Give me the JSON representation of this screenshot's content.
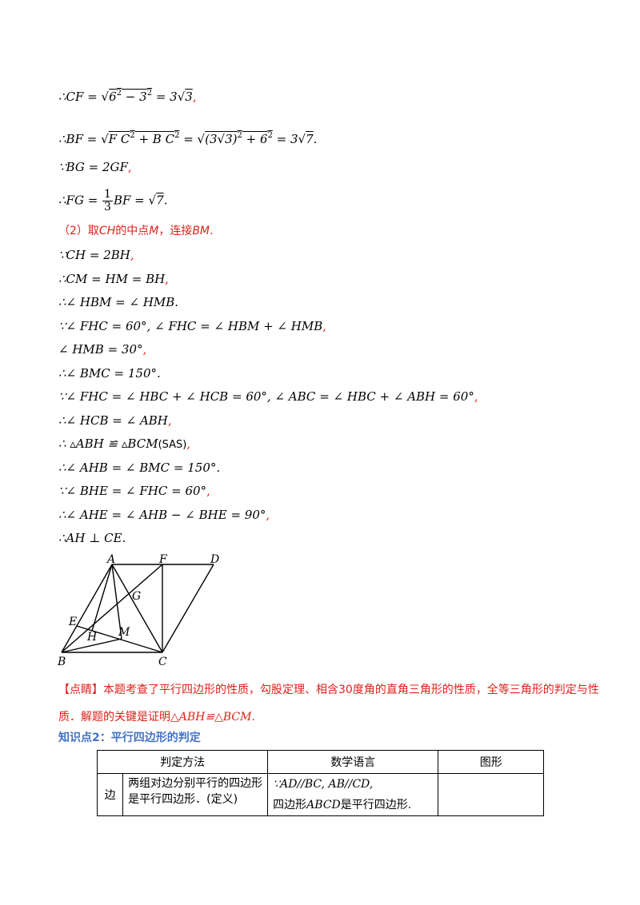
{
  "lines": [
    {
      "id": "l1",
      "text": "∴CF=√(6²−3²)=3√3,"
    },
    {
      "id": "l2",
      "text": "∴BF=√(FC²+BC²)=√((3√3)²+6²)=3√7."
    },
    {
      "id": "l3",
      "text": "∵BG=2GF,"
    },
    {
      "id": "l4",
      "text": "∴FG=1/3 BF=√7."
    },
    {
      "id": "l5",
      "text": "（2）取CH的中点M，连接BM."
    },
    {
      "id": "l6",
      "text": "∵CH=2BH,"
    },
    {
      "id": "l7",
      "text": "∴CM=HM=BH,"
    },
    {
      "id": "l8",
      "text": "∴∠HBM=∠HMB."
    },
    {
      "id": "l9",
      "text": "∵∠FHC=60°,∠FHC=∠HBM+∠HMB,"
    },
    {
      "id": "l10",
      "text": "∠HMB=30°,"
    },
    {
      "id": "l11",
      "text": "∴∠BMC=150°."
    },
    {
      "id": "l12",
      "text": "∵∠FHC=∠HBC+∠HCB=60°,∠ABC=∠HBC+∠ABH=60°,"
    },
    {
      "id": "l13",
      "text": "∴∠HCB=∠ABH,"
    },
    {
      "id": "l14",
      "text": "∴△ABH≌△BCM(SAS),"
    },
    {
      "id": "l15",
      "text": "∴∠AHB=∠BMC=150°."
    },
    {
      "id": "l16",
      "text": "∵∠BHE=∠FHC=60°,"
    },
    {
      "id": "l17",
      "text": "∴∠AHE=∠AHB−∠BHE=90°,"
    },
    {
      "id": "l18",
      "text": "∴AH⊥CE."
    }
  ],
  "figure_labels": {
    "A": "A",
    "F": "F",
    "D": "D",
    "G": "G",
    "E": "E",
    "H": "H",
    "M": "M",
    "B": "B",
    "C": "C"
  },
  "comment": {
    "part1": "【点睛】本题考查了平行四边形的性质，勾股定理、相含30度角的直角三角形的性质，全等三角形的判定与性质．解题的关键是证明",
    "math": "△ABH≌△BCM",
    "end": "."
  },
  "knowledge_point": "知识点2：平行四边形的判定",
  "table": {
    "headers": [
      "判定方法",
      "数学语言",
      "图形"
    ],
    "row1": {
      "side": "边",
      "method": "两组对边分别平行的四边形是平行四边形．(定义)",
      "lang_line1": "∵AD//BC, AB//CD,",
      "lang_line2_prefix": "四边形",
      "lang_line2_math": "ABCD",
      "lang_line2_suffix": "是平行四边形."
    }
  },
  "colors": {
    "red": "#e0201a",
    "blue": "#4472c4"
  }
}
